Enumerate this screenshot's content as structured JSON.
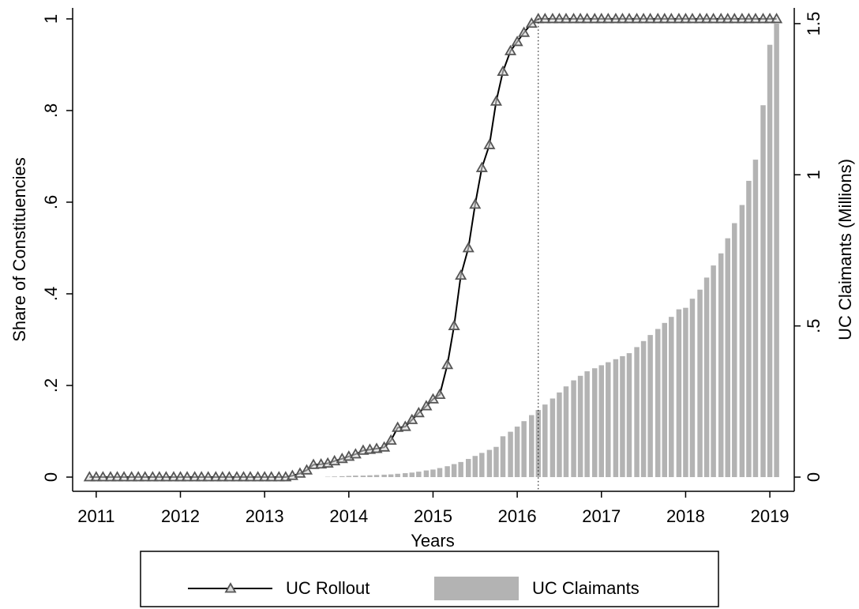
{
  "chart_data": {
    "type": "combo",
    "xlabel": "Years",
    "ylabel": "Share of  Constituencies",
    "y2label": "UC Claimants (Millions)",
    "x": [
      2010.92,
      2011.0,
      2011.08,
      2011.17,
      2011.25,
      2011.33,
      2011.42,
      2011.5,
      2011.58,
      2011.67,
      2011.75,
      2011.83,
      2011.92,
      2012.0,
      2012.08,
      2012.17,
      2012.25,
      2012.33,
      2012.42,
      2012.5,
      2012.58,
      2012.67,
      2012.75,
      2012.83,
      2012.92,
      2013.0,
      2013.08,
      2013.17,
      2013.25,
      2013.33,
      2013.42,
      2013.5,
      2013.58,
      2013.67,
      2013.75,
      2013.83,
      2013.92,
      2014.0,
      2014.08,
      2014.17,
      2014.25,
      2014.33,
      2014.42,
      2014.5,
      2014.58,
      2014.67,
      2014.75,
      2014.83,
      2014.92,
      2015.0,
      2015.08,
      2015.17,
      2015.25,
      2015.33,
      2015.42,
      2015.5,
      2015.58,
      2015.67,
      2015.75,
      2015.83,
      2015.92,
      2016.0,
      2016.08,
      2016.17,
      2016.25,
      2016.33,
      2016.42,
      2016.5,
      2016.58,
      2016.67,
      2016.75,
      2016.83,
      2016.92,
      2017.0,
      2017.08,
      2017.17,
      2017.25,
      2017.33,
      2017.42,
      2017.5,
      2017.58,
      2017.67,
      2017.75,
      2017.83,
      2017.92,
      2018.0,
      2018.08,
      2018.17,
      2018.25,
      2018.33,
      2018.42,
      2018.5,
      2018.58,
      2018.67,
      2018.75,
      2018.83,
      2018.92,
      2019.0,
      2019.08
    ],
    "series": [
      {
        "name": "UC Claimants",
        "type": "bar",
        "axis": "y2",
        "color": "#b3b3b3",
        "values": [
          0,
          0,
          0,
          0,
          0,
          0,
          0,
          0,
          0,
          0,
          0,
          0,
          0,
          0,
          0,
          0,
          0,
          0,
          0,
          0,
          0,
          0,
          0,
          0,
          0,
          0,
          0,
          0,
          0,
          0,
          0,
          0,
          0,
          0,
          0.001,
          0.002,
          0.003,
          0.004,
          0.005,
          0.005,
          0.006,
          0.007,
          0.008,
          0.009,
          0.011,
          0.013,
          0.015,
          0.018,
          0.022,
          0.025,
          0.03,
          0.036,
          0.043,
          0.05,
          0.06,
          0.07,
          0.08,
          0.09,
          0.1,
          0.135,
          0.15,
          0.167,
          0.185,
          0.205,
          0.222,
          0.24,
          0.26,
          0.28,
          0.3,
          0.32,
          0.335,
          0.35,
          0.36,
          0.37,
          0.38,
          0.39,
          0.4,
          0.41,
          0.43,
          0.45,
          0.47,
          0.49,
          0.51,
          0.53,
          0.555,
          0.56,
          0.59,
          0.62,
          0.66,
          0.7,
          0.74,
          0.79,
          0.84,
          0.9,
          0.98,
          1.05,
          1.23,
          1.43,
          1.5
        ]
      },
      {
        "name": "UC Rollout",
        "type": "line",
        "marker": "triangle",
        "color": "#000000",
        "marker_color": "#555555",
        "values": [
          0,
          0,
          0,
          0,
          0,
          0,
          0,
          0,
          0,
          0,
          0,
          0,
          0,
          0,
          0,
          0,
          0,
          0,
          0,
          0,
          0,
          0,
          0,
          0,
          0,
          0,
          0,
          0,
          0,
          0.003,
          0.008,
          0.015,
          0.027,
          0.028,
          0.03,
          0.035,
          0.04,
          0.045,
          0.05,
          0.058,
          0.06,
          0.062,
          0.065,
          0.08,
          0.108,
          0.11,
          0.125,
          0.14,
          0.155,
          0.17,
          0.18,
          0.245,
          0.33,
          0.44,
          0.5,
          0.595,
          0.675,
          0.725,
          0.82,
          0.885,
          0.93,
          0.95,
          0.97,
          0.99,
          1,
          1,
          1,
          1,
          1,
          1,
          1,
          1,
          1,
          1,
          1,
          1,
          1,
          1,
          1,
          1,
          1,
          1,
          1,
          1,
          1,
          1,
          1,
          1,
          1,
          1,
          1,
          1,
          1,
          1,
          1,
          1,
          1,
          1,
          1
        ]
      }
    ],
    "vline": 2016.25,
    "xlim": [
      2010.72,
      2019.29
    ],
    "xticks": [
      2011,
      2012,
      2013,
      2014,
      2015,
      2016,
      2017,
      2018,
      2019
    ],
    "ylim": [
      -0.031,
      1.024
    ],
    "yticks": [
      0,
      {
        "value": 0.2,
        "label": ".2"
      },
      {
        "value": 0.4,
        "label": ".4"
      },
      {
        "value": 0.6,
        "label": ".6"
      },
      {
        "value": 0.8,
        "label": ".8"
      },
      1
    ],
    "y2lim": [
      -0.047,
      1.552
    ],
    "y2ticks": [
      0,
      {
        "value": 0.5,
        "label": ".5"
      },
      1,
      1.5
    ],
    "legend": "bottom"
  }
}
